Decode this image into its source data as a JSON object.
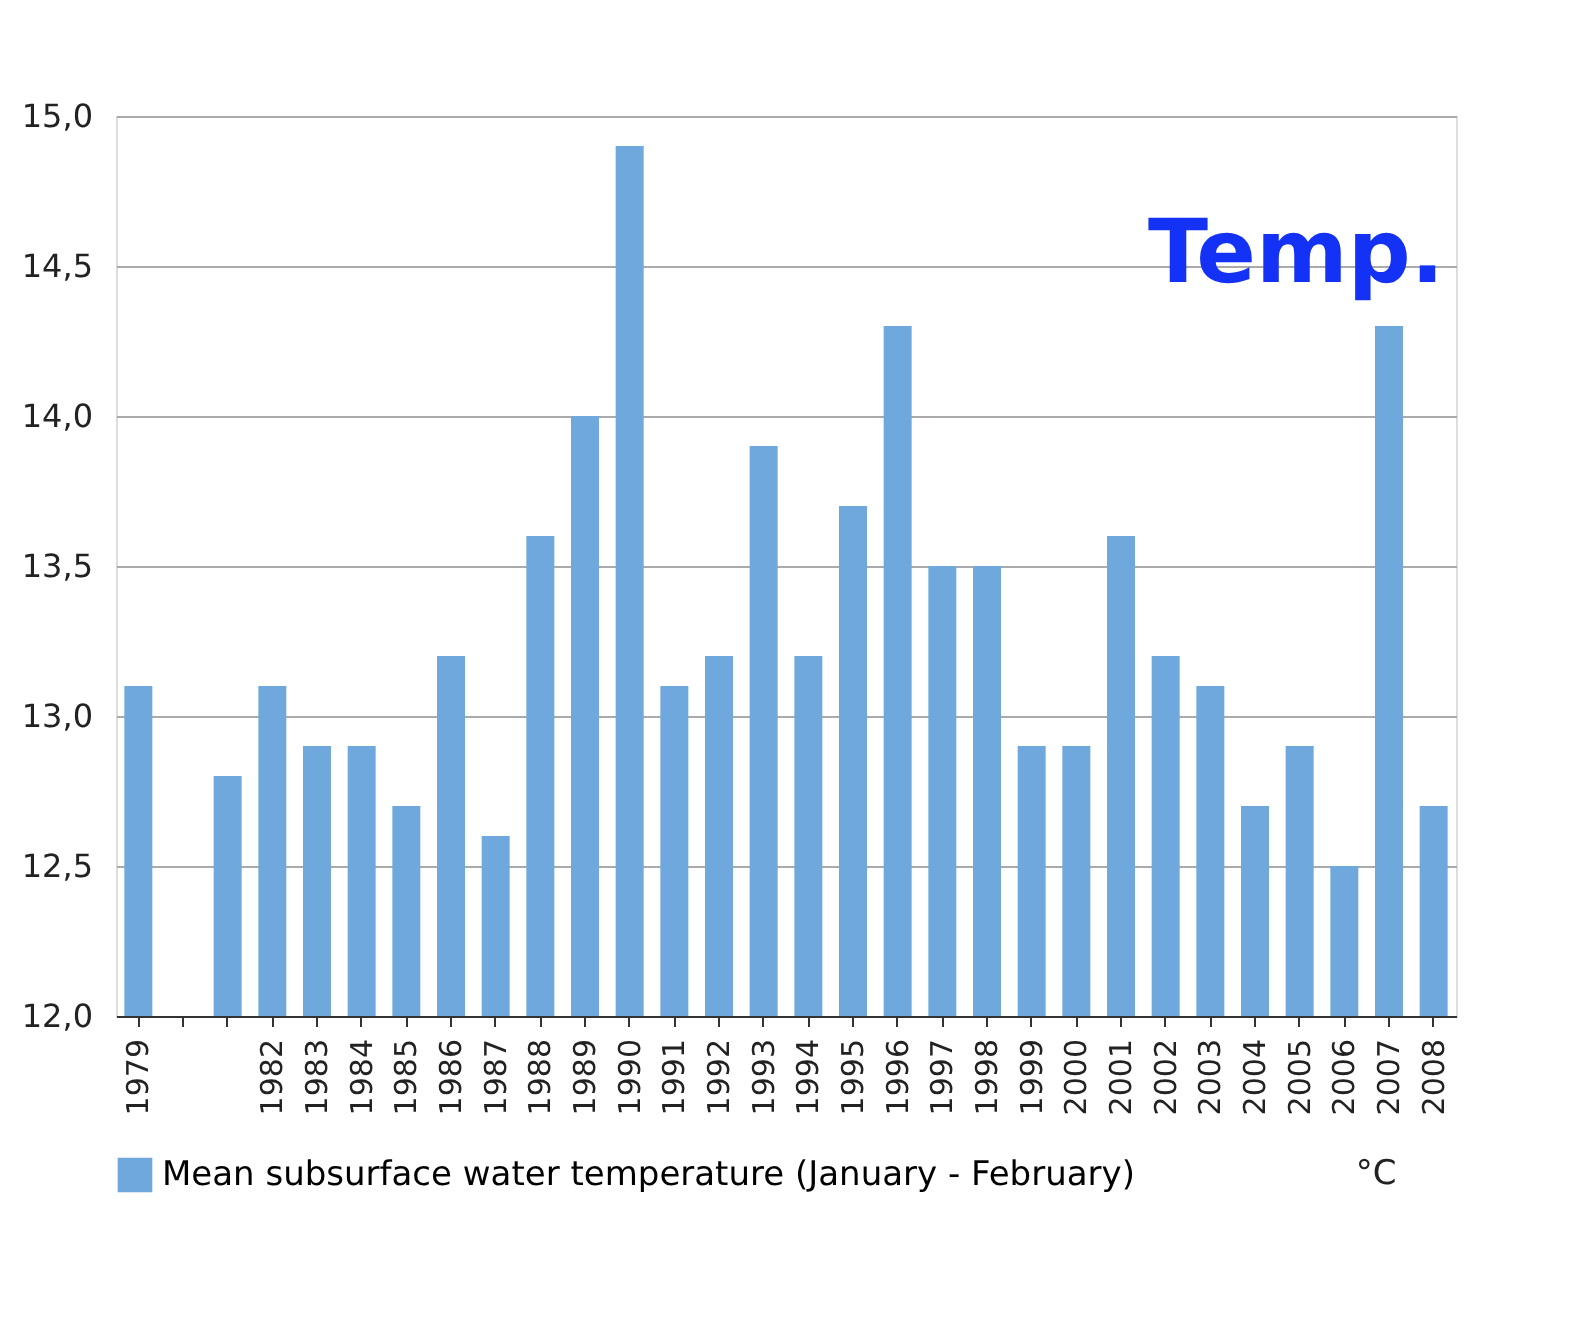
{
  "chart_data": {
    "type": "bar",
    "categories": [
      "1979",
      null,
      null,
      "1982",
      "1983",
      "1984",
      "1985",
      "1986",
      "1987",
      "1988",
      "1989",
      "1990",
      "1991",
      "1992",
      "1993",
      "1994",
      "1995",
      "1996",
      "1997",
      "1998",
      "1999",
      "2000",
      "2001",
      "2002",
      "2003",
      "2004",
      "2005",
      "2006",
      "2007",
      "2008"
    ],
    "series": [
      {
        "name": "Mean subsurface water temperature (January - February)",
        "color": "#6fa8dc",
        "values": [
          13.1,
          null,
          12.8,
          13.1,
          12.9,
          12.9,
          12.7,
          13.2,
          12.6,
          13.6,
          14.0,
          14.9,
          13.1,
          13.2,
          13.9,
          13.2,
          13.7,
          14.3,
          13.5,
          13.5,
          12.9,
          12.9,
          13.6,
          13.2,
          13.1,
          12.7,
          12.9,
          12.5,
          14.3,
          12.7
        ]
      }
    ],
    "ylim": [
      12.0,
      15.0
    ],
    "yticks": [
      {
        "value": 12.0,
        "label": "12,0"
      },
      {
        "value": 12.5,
        "label": "12,5"
      },
      {
        "value": 13.0,
        "label": "13,0"
      },
      {
        "value": 13.5,
        "label": "13,5"
      },
      {
        "value": 14.0,
        "label": "14,0"
      },
      {
        "value": 14.5,
        "label": "14,5"
      },
      {
        "value": 15.0,
        "label": "15,0"
      }
    ],
    "grid": "y",
    "legend": "bottom",
    "annotations": [
      "Temp.",
      "°C"
    ]
  }
}
